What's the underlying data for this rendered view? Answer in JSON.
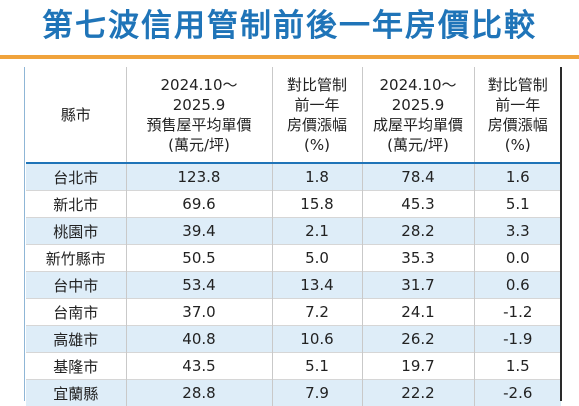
{
  "title": "第七波信用管制前後一年房價比較",
  "colors": {
    "title": "#1f74b8",
    "accent_rule": "#f0a33c",
    "stripe": "#deedf8"
  },
  "headers": [
    {
      "lines": [
        "縣市"
      ]
    },
    {
      "lines": [
        "2024.10～",
        "2025.9",
        "預售屋平均單價",
        "(萬元/坪)"
      ]
    },
    {
      "lines": [
        "對比管制",
        "前一年",
        "房價漲幅",
        "(%)"
      ]
    },
    {
      "lines": [
        "2024.10～",
        "2025.9",
        "成屋平均單價",
        "(萬元/坪)"
      ]
    },
    {
      "lines": [
        "對比管制",
        "前一年",
        "房價漲幅",
        "(%)"
      ]
    }
  ],
  "rows": [
    [
      "台北市",
      "123.8",
      "1.8",
      "78.4",
      "1.6"
    ],
    [
      "新北市",
      "69.6",
      "15.8",
      "45.3",
      "5.1"
    ],
    [
      "桃園市",
      "39.4",
      "2.1",
      "28.2",
      "3.3"
    ],
    [
      "新竹縣市",
      "50.5",
      "5.0",
      "35.3",
      "0.0"
    ],
    [
      "台中市",
      "53.4",
      "13.4",
      "31.7",
      "0.6"
    ],
    [
      "台南市",
      "37.0",
      "7.2",
      "24.1",
      "-1.2"
    ],
    [
      "高雄市",
      "40.8",
      "10.6",
      "26.2",
      "-1.9"
    ],
    [
      "基隆市",
      "43.5",
      "5.1",
      "19.7",
      "1.5"
    ],
    [
      "宜蘭縣",
      "28.8",
      "7.9",
      "22.2",
      "-2.6"
    ]
  ]
}
